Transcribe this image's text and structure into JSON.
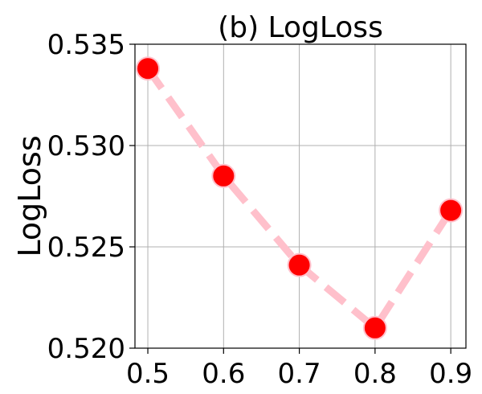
{
  "chart_data": {
    "type": "line",
    "title": "(b) LogLoss",
    "xlabel": "",
    "ylabel": "LogLoss",
    "x": [
      0.5,
      0.6,
      0.7,
      0.8,
      0.9
    ],
    "xticks": [
      "0.5",
      "0.6",
      "0.7",
      "0.8",
      "0.9"
    ],
    "yticks": [
      "0.520",
      "0.525",
      "0.530",
      "0.535"
    ],
    "ytick_values": [
      0.52,
      0.525,
      0.53,
      0.535
    ],
    "series": [
      {
        "values": [
          0.5338,
          0.5285,
          0.5241,
          0.521,
          0.5268
        ]
      }
    ],
    "xlim": [
      0.483,
      0.92
    ],
    "ylim": [
      0.52,
      0.535
    ],
    "grid": true,
    "line_color": "#ffc0cb",
    "line_style": "dashed",
    "marker_color": "#ff0000",
    "marker_edge_color": "#ffc0cb"
  }
}
